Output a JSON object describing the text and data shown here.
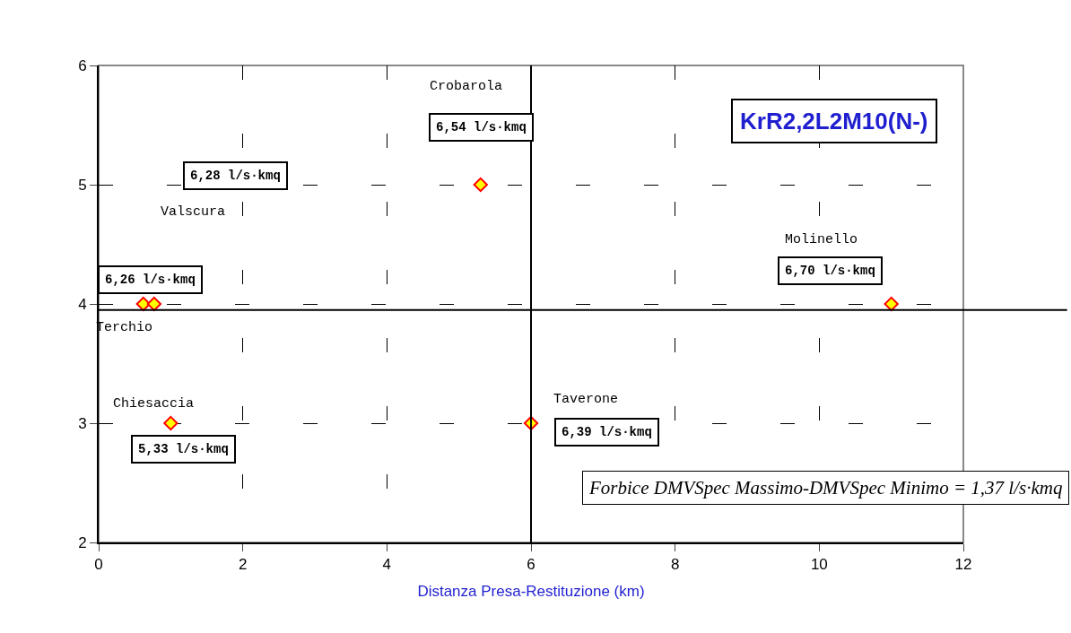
{
  "chart_data": {
    "type": "scatter",
    "title": "KrR2,2L2M10(N-)",
    "xlabel": "Distanza Presa-Restituzione (km)",
    "xlim": [
      0,
      12
    ],
    "xticks": [
      0,
      2,
      4,
      6,
      8,
      10,
      12
    ],
    "ylim": [
      2,
      6
    ],
    "yticks": [
      2,
      3,
      4,
      5,
      6
    ],
    "grid": true,
    "marker": "diamond",
    "legend": false,
    "series": [
      {
        "color": "#ffff00",
        "x": [
          0.62,
          0.77,
          1,
          5.3,
          6,
          11
        ],
        "values": [
          4,
          4,
          3,
          5,
          3,
          4
        ]
      }
    ],
    "ref_lines": [
      {
        "axis": "x",
        "value": 6,
        "color": "#000000"
      },
      {
        "axis": "y",
        "value": 3.95,
        "color": "#000000"
      }
    ],
    "annotations": [
      "Terchio",
      "Valscura",
      "Chiesaccia",
      "Crobarola",
      "Taverone",
      "Molinello",
      "6,26 l/s·kmq",
      "6,28 l/s·kmq",
      "5,33 l/s·kmq",
      "6,54 l/s·kmq",
      "6,39 l/s·kmq",
      "6,70 l/s·kmq",
      "Forbice DMVSpec Massimo-DMVSpec Minimo = 1,37 l/s·kmq"
    ]
  }
}
